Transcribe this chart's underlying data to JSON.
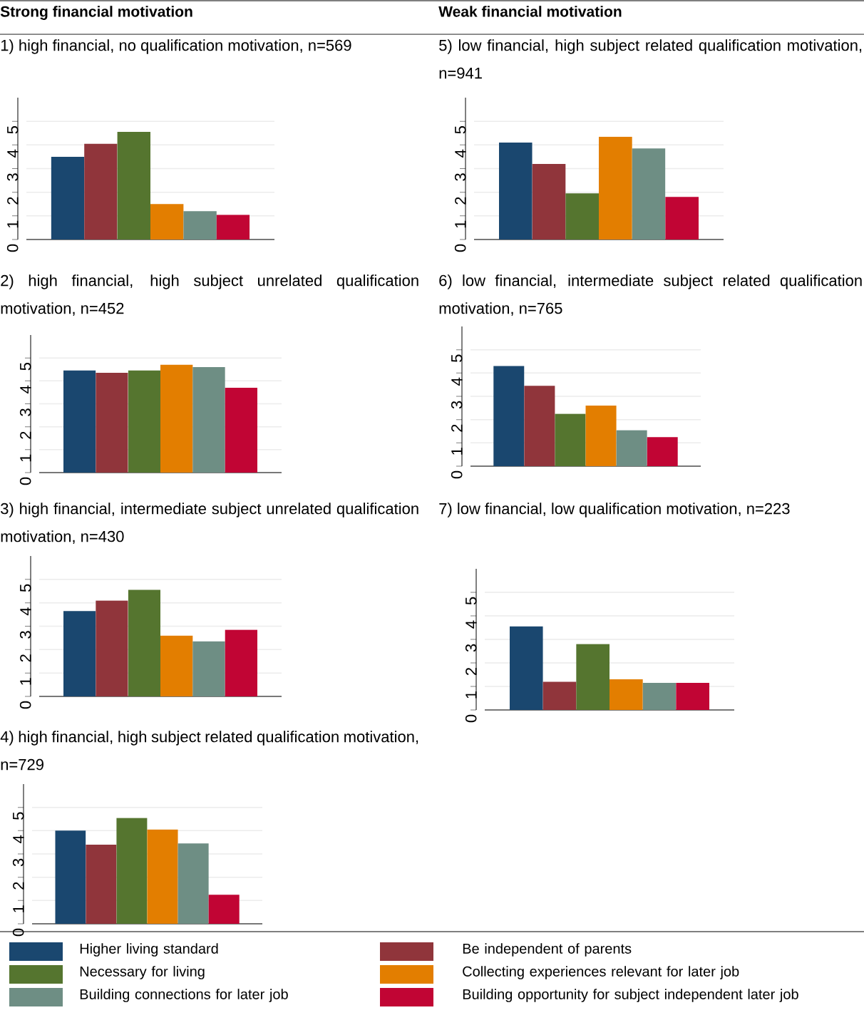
{
  "chart_data": [
    {
      "type": "bar",
      "annotations": [
        "Strong financial motivation"
      ],
      "title": "1) high financial, no qualification motivation, n=569",
      "categories": [
        null
      ],
      "series": [
        {
          "name": "Higher living standard",
          "color": "#1a476f",
          "values": [
            3.5
          ]
        },
        {
          "name": "Be independent of parents",
          "color": "#90353b",
          "values": [
            4.05
          ]
        },
        {
          "name": "Necessary for living",
          "color": "#55752f",
          "values": [
            4.55
          ]
        },
        {
          "name": "Collecting experiences relevant for later job",
          "color": "#e37e00",
          "values": [
            1.5
          ]
        },
        {
          "name": "Building connections for later job",
          "color": "#6e8e84",
          "values": [
            1.2
          ]
        },
        {
          "name": "Building opportunity for subject independent later job",
          "color": "#c10534",
          "values": [
            1.05
          ]
        }
      ],
      "ylim": [
        0,
        6
      ],
      "yticks": [
        0,
        1,
        2,
        3,
        4,
        5
      ],
      "grid": "y",
      "tick_labels": "y",
      "legend": "bottom"
    },
    {
      "type": "bar",
      "annotations": [
        "Weak financial motivation"
      ],
      "title": "5) low financial, high subject related qualification motivation, n=941",
      "categories": [
        null
      ],
      "series": [
        {
          "color": "#1a476f",
          "values": [
            4.1
          ]
        },
        {
          "color": "#90353b",
          "values": [
            3.2
          ]
        },
        {
          "color": "#55752f",
          "values": [
            1.95
          ]
        },
        {
          "color": "#e37e00",
          "values": [
            4.35
          ]
        },
        {
          "color": "#6e8e84",
          "values": [
            3.85
          ]
        },
        {
          "color": "#c10534",
          "values": [
            1.8
          ]
        }
      ],
      "ylim": [
        0,
        6
      ],
      "yticks": [
        0,
        1,
        2,
        3,
        4,
        5
      ],
      "grid": "y",
      "tick_labels": "y"
    },
    {
      "type": "bar",
      "title": "2) high financial, high subject unrelated qualification motivation, n=452",
      "categories": [
        null
      ],
      "series": [
        {
          "color": "#1a476f",
          "values": [
            4.45
          ]
        },
        {
          "color": "#90353b",
          "values": [
            4.35
          ]
        },
        {
          "color": "#55752f",
          "values": [
            4.45
          ]
        },
        {
          "color": "#e37e00",
          "values": [
            4.7
          ]
        },
        {
          "color": "#6e8e84",
          "values": [
            4.6
          ]
        },
        {
          "color": "#c10534",
          "values": [
            3.7
          ]
        }
      ],
      "ylim": [
        0,
        6
      ],
      "yticks": [
        0,
        1,
        2,
        3,
        4,
        5
      ],
      "grid": "y",
      "tick_labels": "y"
    },
    {
      "type": "bar",
      "title": "6) low financial, intermediate subject related qualification motivation, n=765",
      "categories": [
        null
      ],
      "series": [
        {
          "color": "#1a476f",
          "values": [
            4.3
          ]
        },
        {
          "color": "#90353b",
          "values": [
            3.45
          ]
        },
        {
          "color": "#55752f",
          "values": [
            2.25
          ]
        },
        {
          "color": "#e37e00",
          "values": [
            2.6
          ]
        },
        {
          "color": "#6e8e84",
          "values": [
            1.55
          ]
        },
        {
          "color": "#c10534",
          "values": [
            1.25
          ]
        }
      ],
      "ylim": [
        0,
        6
      ],
      "yticks": [
        0,
        1,
        2,
        3,
        4,
        5
      ],
      "grid": "y",
      "tick_labels": "y"
    },
    {
      "type": "bar",
      "title": "3) high financial, intermediate subject unrelated qualification motivation, n=430",
      "categories": [
        null
      ],
      "series": [
        {
          "color": "#1a476f",
          "values": [
            3.65
          ]
        },
        {
          "color": "#90353b",
          "values": [
            4.1
          ]
        },
        {
          "color": "#55752f",
          "values": [
            4.55
          ]
        },
        {
          "color": "#e37e00",
          "values": [
            2.6
          ]
        },
        {
          "color": "#6e8e84",
          "values": [
            2.35
          ]
        },
        {
          "color": "#c10534",
          "values": [
            2.85
          ]
        }
      ],
      "ylim": [
        0,
        6
      ],
      "yticks": [
        0,
        1,
        2,
        3,
        4,
        5
      ],
      "grid": "y",
      "tick_labels": "y"
    },
    {
      "type": "bar",
      "title": "7) low financial, low qualification motivation, n=223",
      "categories": [
        null
      ],
      "series": [
        {
          "color": "#1a476f",
          "values": [
            3.55
          ]
        },
        {
          "color": "#90353b",
          "values": [
            1.2
          ]
        },
        {
          "color": "#55752f",
          "values": [
            2.8
          ]
        },
        {
          "color": "#e37e00",
          "values": [
            1.3
          ]
        },
        {
          "color": "#6e8e84",
          "values": [
            1.15
          ]
        },
        {
          "color": "#c10534",
          "values": [
            1.15
          ]
        }
      ],
      "ylim": [
        0,
        6
      ],
      "yticks": [
        0,
        1,
        2,
        3,
        4,
        5
      ],
      "grid": "y",
      "tick_labels": "y"
    },
    {
      "type": "bar",
      "title": "4) high financial, high subject related qualification motivation, n=729",
      "categories": [
        null
      ],
      "series": [
        {
          "color": "#1a476f",
          "values": [
            4.0
          ]
        },
        {
          "color": "#90353b",
          "values": [
            3.4
          ]
        },
        {
          "color": "#55752f",
          "values": [
            4.55
          ]
        },
        {
          "color": "#e37e00",
          "values": [
            4.05
          ]
        },
        {
          "color": "#6e8e84",
          "values": [
            3.45
          ]
        },
        {
          "color": "#c10534",
          "values": [
            1.25
          ]
        }
      ],
      "ylim": [
        0,
        6
      ],
      "yticks": [
        0,
        1,
        2,
        3,
        4,
        5
      ],
      "grid": "y",
      "tick_labels": "y"
    }
  ]
}
